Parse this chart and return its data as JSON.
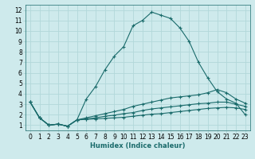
{
  "xlabel": "Humidex (Indice chaleur)",
  "bg_color": "#ceeaec",
  "grid_color": "#b2d8da",
  "line_color": "#1a6b6b",
  "xlim": [
    -0.5,
    23.5
  ],
  "ylim": [
    0.5,
    12.5
  ],
  "xticks": [
    0,
    1,
    2,
    3,
    4,
    5,
    6,
    7,
    8,
    9,
    10,
    11,
    12,
    13,
    14,
    15,
    16,
    17,
    18,
    19,
    20,
    21,
    22,
    23
  ],
  "yticks": [
    1,
    2,
    3,
    4,
    5,
    6,
    7,
    8,
    9,
    10,
    11,
    12
  ],
  "series": [
    {
      "x": [
        0,
        1,
        2,
        3,
        4,
        5,
        6,
        7,
        8,
        9,
        10,
        11,
        12,
        13,
        14,
        15,
        16,
        17,
        18,
        19,
        20,
        21,
        22,
        23
      ],
      "y": [
        3.2,
        1.7,
        1.0,
        1.1,
        0.9,
        1.5,
        3.5,
        4.7,
        6.3,
        7.6,
        8.5,
        10.5,
        11.0,
        11.8,
        11.5,
        11.2,
        10.3,
        9.0,
        7.0,
        5.5,
        4.2,
        3.5,
        3.1,
        2.0
      ]
    },
    {
      "x": [
        0,
        1,
        2,
        3,
        4,
        5,
        6,
        7,
        8,
        9,
        10,
        11,
        12,
        13,
        14,
        15,
        16,
        17,
        18,
        19,
        20,
        21,
        22,
        23
      ],
      "y": [
        3.2,
        1.7,
        1.0,
        1.1,
        0.9,
        1.5,
        1.7,
        1.9,
        2.1,
        2.3,
        2.5,
        2.8,
        3.0,
        3.2,
        3.4,
        3.6,
        3.7,
        3.8,
        3.9,
        4.1,
        4.4,
        4.1,
        3.5,
        3.1
      ]
    },
    {
      "x": [
        0,
        1,
        2,
        3,
        4,
        5,
        6,
        7,
        8,
        9,
        10,
        11,
        12,
        13,
        14,
        15,
        16,
        17,
        18,
        19,
        20,
        21,
        22,
        23
      ],
      "y": [
        3.2,
        1.7,
        1.0,
        1.1,
        0.9,
        1.5,
        1.6,
        1.7,
        1.85,
        1.95,
        2.1,
        2.2,
        2.4,
        2.55,
        2.65,
        2.75,
        2.85,
        2.95,
        3.05,
        3.1,
        3.2,
        3.2,
        3.0,
        2.8
      ]
    },
    {
      "x": [
        0,
        1,
        2,
        3,
        4,
        5,
        6,
        7,
        8,
        9,
        10,
        11,
        12,
        13,
        14,
        15,
        16,
        17,
        18,
        19,
        20,
        21,
        22,
        23
      ],
      "y": [
        3.2,
        1.7,
        1.0,
        1.1,
        0.9,
        1.5,
        1.55,
        1.6,
        1.65,
        1.7,
        1.75,
        1.85,
        1.95,
        2.05,
        2.1,
        2.2,
        2.3,
        2.4,
        2.5,
        2.6,
        2.65,
        2.7,
        2.65,
        2.5
      ]
    }
  ]
}
